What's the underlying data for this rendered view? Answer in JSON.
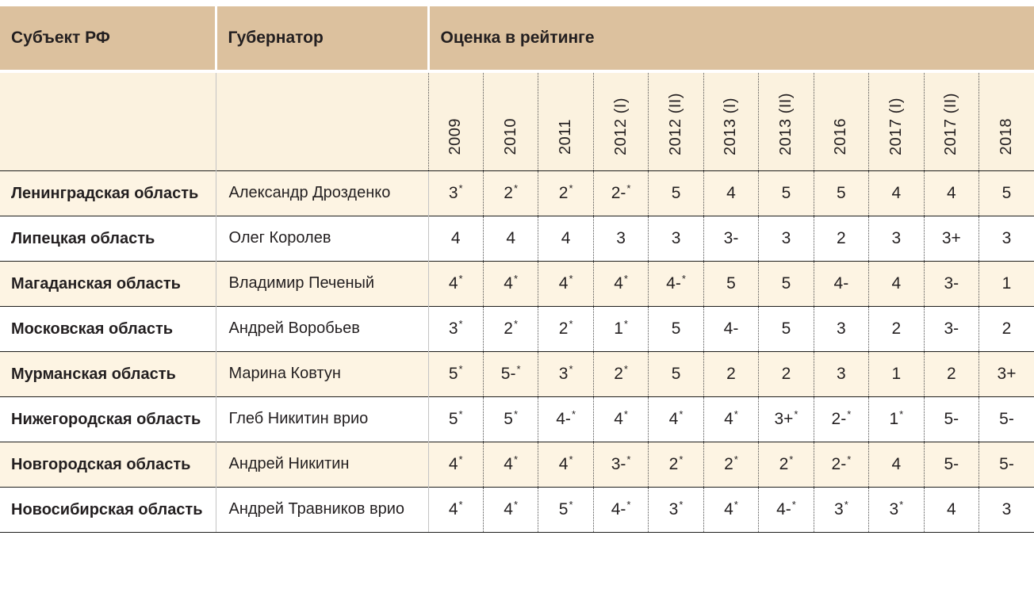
{
  "header": {
    "region": "Субъект РФ",
    "governor": "Губернатор",
    "rating": "Оценка в рейтинге"
  },
  "chart_data": {
    "type": "table",
    "title": "Оценка в рейтинге",
    "columns": [
      "Субъект РФ",
      "Губернатор",
      "2009",
      "2010",
      "2011",
      "2012 (I)",
      "2012 (II)",
      "2013 (I)",
      "2013 (II)",
      "2016",
      "2017 (I)",
      "2017 (II)",
      "2018"
    ],
    "year_columns": [
      "2009",
      "2010",
      "2011",
      "2012 (I)",
      "2012 (II)",
      "2013 (I)",
      "2013 (II)",
      "2016",
      "2017 (I)",
      "2017 (II)",
      "2018"
    ],
    "rows": [
      {
        "region": "Ленинградская область",
        "governor": "Александр Дрозденко",
        "scores": [
          "3*",
          "2*",
          "2*",
          "2-*",
          "5",
          "4",
          "5",
          "5",
          "4",
          "4",
          "5"
        ]
      },
      {
        "region": "Липецкая область",
        "governor": "Олег Королев",
        "scores": [
          "4",
          "4",
          "4",
          "3",
          "3",
          "3-",
          "3",
          "2",
          "3",
          "3+",
          "3"
        ]
      },
      {
        "region": "Магаданская область",
        "governor": "Владимир Печеный",
        "scores": [
          "4*",
          "4*",
          "4*",
          "4*",
          "4-*",
          "5",
          "5",
          "4-",
          "4",
          "3-",
          "1"
        ]
      },
      {
        "region": "Московская область",
        "governor": "Андрей Воробьев",
        "scores": [
          "3*",
          "2*",
          "2*",
          "1*",
          "5",
          "4-",
          "5",
          "3",
          "2",
          "3-",
          "2"
        ]
      },
      {
        "region": "Мурманская область",
        "governor": "Марина Ковтун",
        "scores": [
          "5*",
          "5-*",
          "3*",
          "2*",
          "5",
          "2",
          "2",
          "3",
          "1",
          "2",
          "3+"
        ]
      },
      {
        "region": "Нижегородская область",
        "governor": "Глеб Никитин врио",
        "scores": [
          "5*",
          "5*",
          "4-*",
          "4*",
          "4*",
          "4*",
          "3+*",
          "2-*",
          "1*",
          "5-",
          "5-"
        ]
      },
      {
        "region": "Новгородская область",
        "governor": "Андрей Никитин",
        "scores": [
          "4*",
          "4*",
          "4*",
          "3-*",
          "2*",
          "2*",
          "2*",
          "2-*",
          "4",
          "5-",
          "5-"
        ]
      },
      {
        "region": "Новосибирская область",
        "governor": "Андрей Травников врио",
        "scores": [
          "4*",
          "4*",
          "5*",
          "4-*",
          "3*",
          "4*",
          "4-*",
          "3*",
          "3*",
          "4",
          "3"
        ]
      }
    ]
  },
  "colors": {
    "header_band": "#dcc19e",
    "subheader_bg": "#fbf2df",
    "row_cream": "#fdf4e3",
    "text": "#231f20"
  }
}
